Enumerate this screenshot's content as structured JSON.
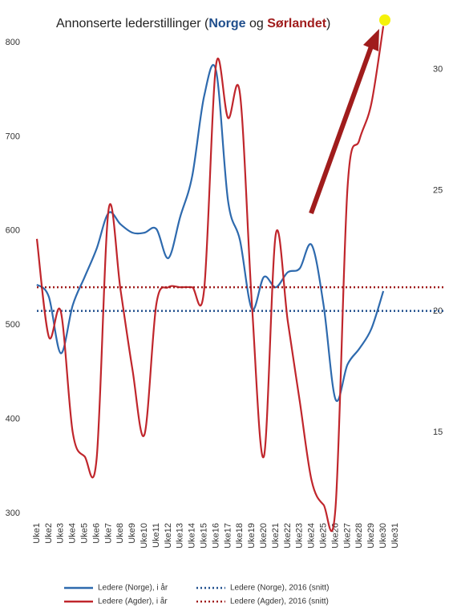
{
  "chart_data": {
    "type": "line",
    "title_parts": [
      "Annonserte lederstillinger (",
      "Norge",
      " og ",
      "Sørlandet",
      ")"
    ],
    "categories": [
      "Uke1",
      "Uke2",
      "Uke3",
      "Uke4",
      "Uke5",
      "Uke6",
      "Uke7",
      "Uke8",
      "Uke9",
      "Uke10",
      "Uke11",
      "Uke12",
      "Uke13",
      "Uke14",
      "Uke15",
      "Uke16",
      "Uke17",
      "Uke18",
      "Uke19",
      "Uke20",
      "Uke21",
      "Uke22",
      "Uke23",
      "Uke24",
      "Uke25",
      "Uke26",
      "Uke27",
      "Uke28",
      "Uke29",
      "Uke30",
      "Uke31"
    ],
    "ylim": [
      300,
      820
    ],
    "yticks": [
      300,
      400,
      500,
      600,
      700,
      800
    ],
    "y2lim": [
      11.65,
      31.9
    ],
    "y2ticks": [
      15,
      20,
      25,
      30
    ],
    "series": [
      {
        "name": "Ledere (Norge), i år",
        "color": "#2e6aae",
        "style": "solid",
        "values": [
          543,
          530,
          470,
          521,
          551,
          581,
          619,
          607,
          598,
          598,
          602,
          571,
          615,
          658,
          743,
          770,
          632,
          590,
          517,
          551,
          540,
          556,
          560,
          585,
          521,
          421,
          458,
          475,
          496,
          536,
          null
        ]
      },
      {
        "name": "Ledere (Norge), 2016 (snitt)",
        "color": "#1f4e8c",
        "style": "dotted",
        "value": 515
      },
      {
        "name": "Ledere (Agder), i år",
        "color": "#c0262c",
        "style": "solid",
        "axis": "y2",
        "values": [
          23.0,
          18.95,
          20.0,
          15.0,
          14.0,
          13.9,
          24.2,
          20.9,
          17.6,
          14.9,
          20.3,
          21.0,
          21.0,
          21.0,
          20.9,
          30.2,
          28.0,
          29.0,
          20.3,
          14.0,
          23.2,
          19.6,
          16.3,
          13.0,
          12.0,
          11.9,
          25.1,
          27.1,
          28.6,
          31.8,
          null
        ]
      },
      {
        "name": "Ledere (Agder), 2016 (snitt)",
        "color": "#a01c1c",
        "style": "dotted",
        "axis": "y2",
        "value": 21.0
      }
    ]
  }
}
